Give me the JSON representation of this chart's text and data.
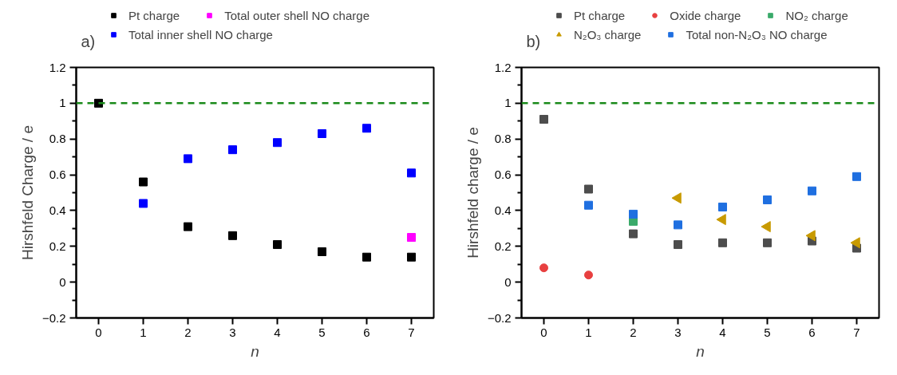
{
  "chart_data": [
    {
      "type": "scatter",
      "annotations": [
        "a)"
      ],
      "xlabel": "n",
      "ylabel": "Hirshfeld Charge / e",
      "x": [
        0,
        1,
        2,
        3,
        4,
        5,
        6,
        7
      ],
      "xlim": [
        -0.5,
        7.5
      ],
      "xticks": [
        0,
        1,
        2,
        3,
        4,
        5,
        6,
        7
      ],
      "ylim": [
        -0.2,
        1.2
      ],
      "yticks": [
        -0.2,
        {
          "value": -0.1,
          "label": null
        },
        0,
        {
          "value": 0.1,
          "label": null
        },
        0.2,
        {
          "value": 0.3,
          "label": null
        },
        0.4,
        {
          "value": 0.5,
          "label": null
        },
        0.6,
        {
          "value": 0.7,
          "label": null
        },
        0.8,
        {
          "value": 0.9,
          "label": null
        },
        1.0,
        {
          "value": 1.1,
          "label": null
        },
        1.2
      ],
      "grid": false,
      "legend": "top",
      "marker": "square",
      "ref_lines": [
        {
          "axis": "y",
          "value": 1.0,
          "color": "#1a8a1a",
          "line_style": "dashed"
        }
      ],
      "series": [
        {
          "name": "Pt charge",
          "color": "#000000",
          "values": [
            1.0,
            0.56,
            0.31,
            0.26,
            0.21,
            0.17,
            0.14,
            0.14
          ]
        },
        {
          "name": "Total outer shell NO charge",
          "color": "#ff00ff",
          "values": [
            null,
            null,
            null,
            null,
            null,
            null,
            null,
            0.25
          ]
        },
        {
          "name": "Total inner shell NO charge",
          "color": "#0000ff",
          "values": [
            null,
            0.44,
            0.69,
            0.74,
            0.78,
            0.83,
            0.86,
            0.61
          ]
        }
      ]
    },
    {
      "type": "scatter",
      "annotations": [
        "b)"
      ],
      "xlabel": "n",
      "ylabel": "Hirshfeld charge / e",
      "x": [
        0,
        1,
        2,
        3,
        4,
        5,
        6,
        7
      ],
      "xlim": [
        -0.5,
        7.5
      ],
      "xticks": [
        0,
        1,
        2,
        3,
        4,
        5,
        6,
        7
      ],
      "ylim": [
        -0.2,
        1.2
      ],
      "yticks": [
        -0.2,
        {
          "value": -0.1,
          "label": null
        },
        0,
        {
          "value": 0.1,
          "label": null
        },
        0.2,
        {
          "value": 0.3,
          "label": null
        },
        0.4,
        {
          "value": 0.5,
          "label": null
        },
        0.6,
        {
          "value": 0.7,
          "label": null
        },
        0.8,
        {
          "value": 0.9,
          "label": null
        },
        1.0,
        {
          "value": 1.1,
          "label": null
        },
        1.2
      ],
      "grid": false,
      "legend": "top",
      "marker": "square",
      "ref_lines": [
        {
          "axis": "y",
          "value": 1.0,
          "color": "#1a8a1a",
          "line_style": "dashed"
        }
      ],
      "series": [
        {
          "name": "Pt charge",
          "color": "#4d4d4d",
          "values": [
            0.91,
            0.52,
            0.27,
            0.21,
            0.22,
            0.22,
            0.23,
            0.19
          ]
        },
        {
          "name": "Oxide charge",
          "color": "#e84040",
          "marker": "circle",
          "values": [
            0.08,
            0.04,
            null,
            null,
            null,
            null,
            null,
            null
          ]
        },
        {
          "name": "NO₂ charge",
          "color": "#3aaa6a",
          "values": [
            null,
            null,
            0.34,
            null,
            null,
            null,
            null,
            null
          ]
        },
        {
          "name": "N₂O₃ charge",
          "color": "#c89a00",
          "marker": "triangle",
          "values": [
            null,
            null,
            null,
            0.47,
            0.35,
            0.31,
            0.26,
            0.22
          ]
        },
        {
          "name": "Total non-N₂O₃ NO charge",
          "color": "#1f6fe0",
          "values": [
            null,
            0.43,
            0.38,
            0.32,
            0.42,
            0.46,
            0.51,
            0.59
          ]
        }
      ]
    }
  ]
}
